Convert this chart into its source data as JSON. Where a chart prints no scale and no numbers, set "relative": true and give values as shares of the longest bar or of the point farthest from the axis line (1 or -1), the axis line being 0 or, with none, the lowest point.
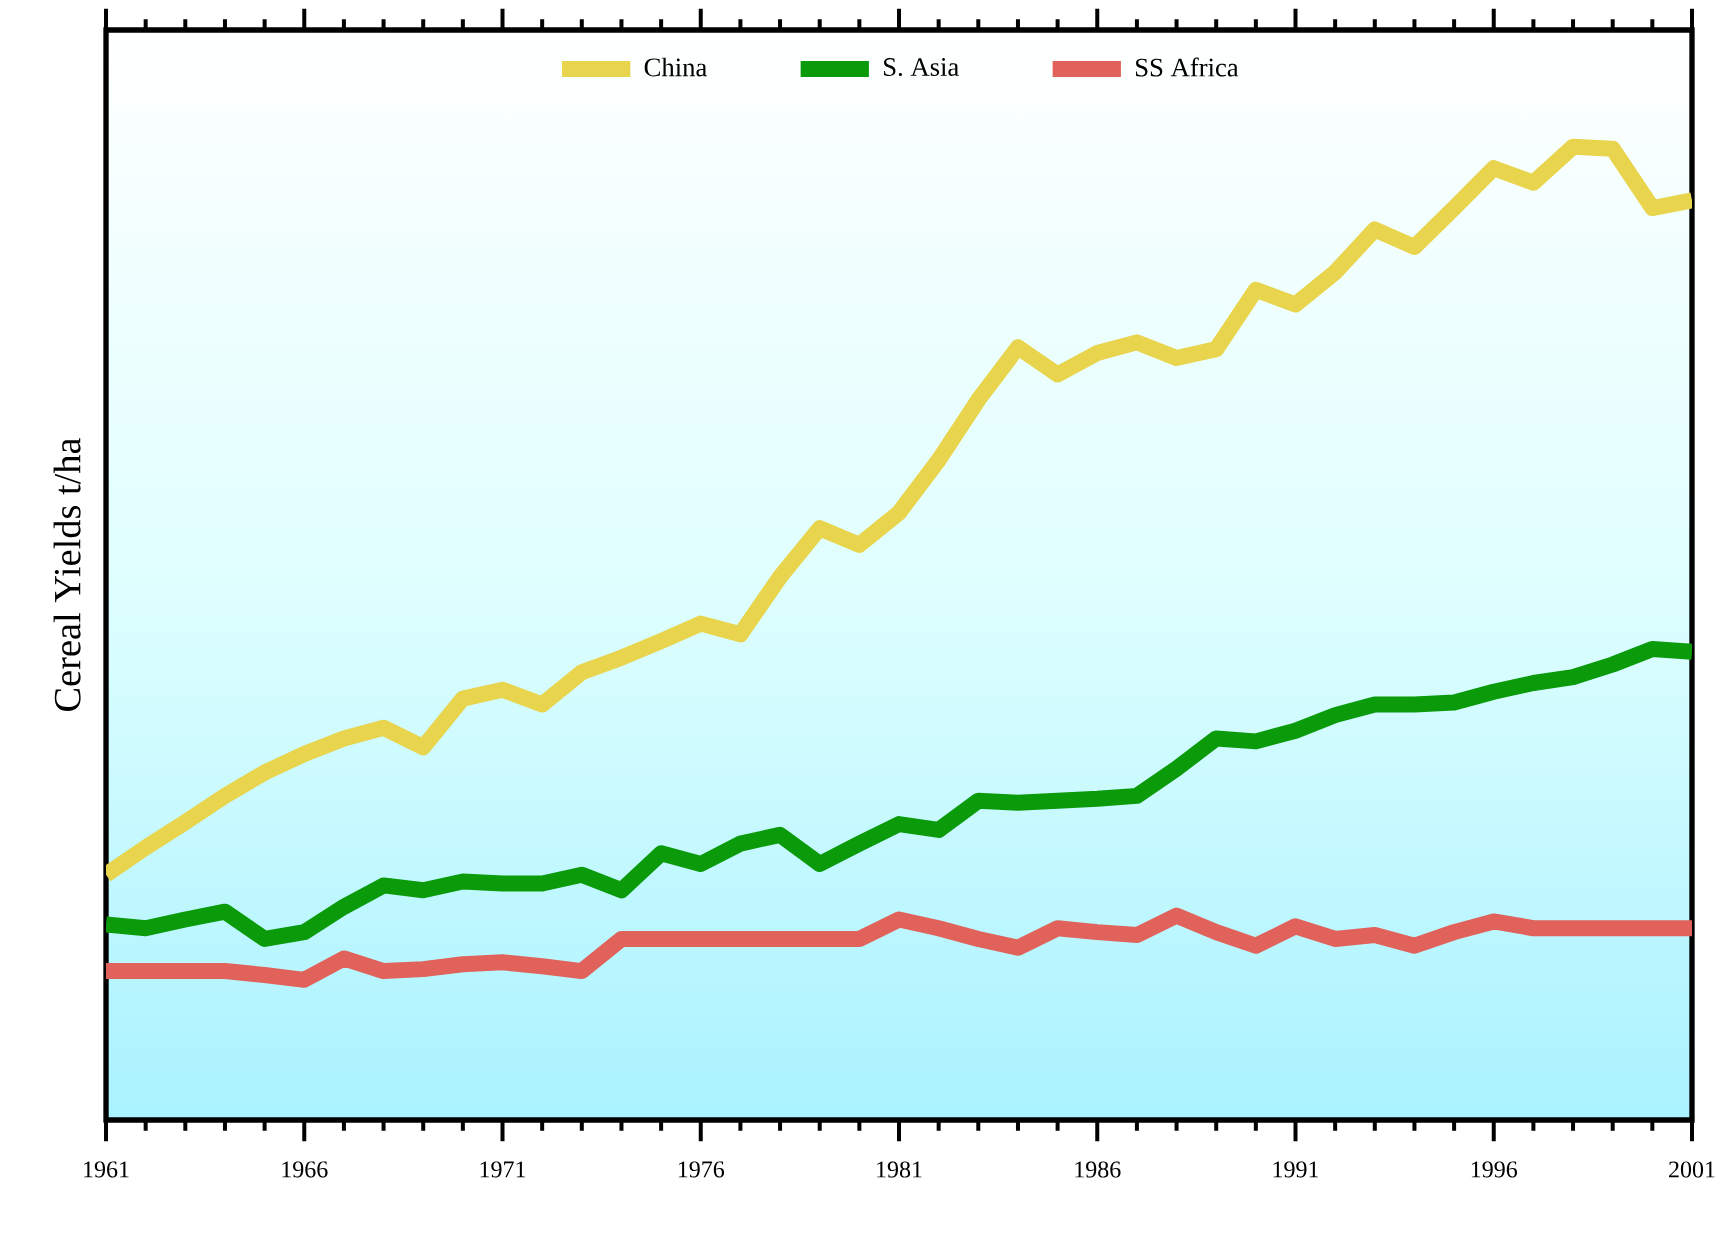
{
  "chart_data": {
    "type": "line",
    "relative": true,
    "ylabel": "Cereal Yields t/ha",
    "x": [
      1961,
      1962,
      1963,
      1964,
      1965,
      1966,
      1967,
      1968,
      1969,
      1970,
      1971,
      1972,
      1973,
      1974,
      1975,
      1976,
      1977,
      1978,
      1979,
      1980,
      1981,
      1982,
      1983,
      1984,
      1985,
      1986,
      1987,
      1988,
      1989,
      1990,
      1991,
      1992,
      1993,
      1994,
      1995,
      1996,
      1997,
      1998,
      1999,
      2000,
      2001
    ],
    "xlim": [
      1961,
      2001
    ],
    "xticks": [
      1961,
      1966,
      1971,
      1976,
      1981,
      1986,
      1991,
      1996,
      2001
    ],
    "series": [
      {
        "name": "China",
        "color": "#e8d44d",
        "values": [
          0.252,
          0.28,
          0.306,
          0.333,
          0.357,
          0.376,
          0.392,
          0.403,
          0.383,
          0.433,
          0.442,
          0.427,
          0.46,
          0.475,
          0.492,
          0.51,
          0.499,
          0.558,
          0.608,
          0.591,
          0.624,
          0.678,
          0.74,
          0.794,
          0.766,
          0.788,
          0.799,
          0.783,
          0.792,
          0.853,
          0.838,
          0.871,
          0.915,
          0.897,
          0.937,
          0.978,
          0.963,
          1.0,
          0.998,
          0.937,
          0.945
        ]
      },
      {
        "name": "S. Asia",
        "color": "#0a9a0a",
        "values": [
          0.201,
          0.197,
          0.206,
          0.214,
          0.186,
          0.193,
          0.219,
          0.241,
          0.236,
          0.245,
          0.243,
          0.243,
          0.252,
          0.236,
          0.274,
          0.263,
          0.284,
          0.293,
          0.263,
          0.284,
          0.304,
          0.298,
          0.328,
          0.326,
          0.328,
          0.33,
          0.333,
          0.361,
          0.392,
          0.389,
          0.4,
          0.416,
          0.427,
          0.427,
          0.429,
          0.44,
          0.449,
          0.455,
          0.468,
          0.484,
          0.481
        ]
      },
      {
        "name": "SS Africa",
        "color": "#e0625a",
        "values": [
          0.153,
          0.153,
          0.153,
          0.153,
          0.149,
          0.144,
          0.166,
          0.153,
          0.155,
          0.16,
          0.162,
          0.158,
          0.153,
          0.186,
          0.186,
          0.186,
          0.186,
          0.186,
          0.186,
          0.186,
          0.206,
          0.197,
          0.186,
          0.177,
          0.197,
          0.193,
          0.19,
          0.21,
          0.193,
          0.179,
          0.199,
          0.186,
          0.19,
          0.179,
          0.193,
          0.204,
          0.197,
          0.197,
          0.197,
          0.197,
          0.197
        ]
      }
    ],
    "legend": "top",
    "line_style": "solid",
    "marker": "none",
    "grid": false
  }
}
